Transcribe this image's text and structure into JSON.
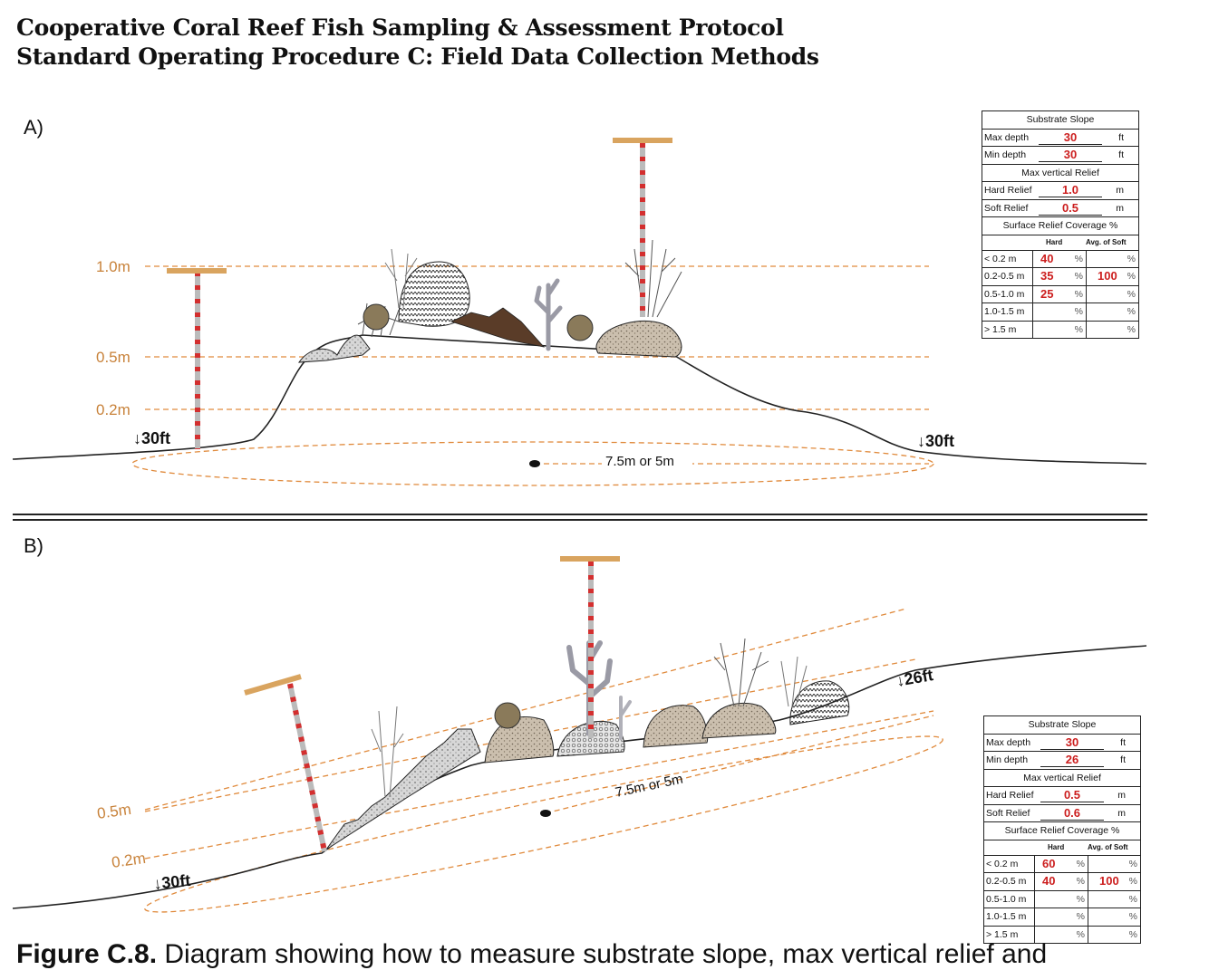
{
  "header": {
    "line1": "Cooperative Coral Reef Fish Sampling & Assessment Protocol",
    "line2": "Standard Operating Procedure C: Field Data Collection Methods"
  },
  "panel_a": {
    "label": "A)",
    "depth_left": "30ft",
    "depth_right": "30ft",
    "levels": [
      "1.0m",
      "0.5m",
      "0.2m"
    ],
    "span_label": "7.5m or 5m",
    "box": {
      "title": "Substrate Slope",
      "max_depth_label": "Max depth",
      "max_depth_value": "30",
      "min_depth_label": "Min depth",
      "min_depth_value": "30",
      "depth_unit": "ft",
      "relief_title": "Max vertical Relief",
      "hard_relief_label": "Hard Relief",
      "hard_relief_value": "1.0",
      "soft_relief_label": "Soft Relief",
      "soft_relief_value": "0.5",
      "relief_unit": "m",
      "coverage_title": "Surface Relief Coverage %",
      "hard_header": "Hard",
      "soft_header": "Avg. of Soft",
      "pct": "%",
      "rows": [
        {
          "cat": "< 0.2 m",
          "hard": "40",
          "soft": ""
        },
        {
          "cat": "0.2-0.5 m",
          "hard": "35",
          "soft": "100"
        },
        {
          "cat": "0.5-1.0 m",
          "hard": "25",
          "soft": ""
        },
        {
          "cat": "1.0-1.5 m",
          "hard": "",
          "soft": ""
        },
        {
          "cat": "> 1.5 m",
          "hard": "",
          "soft": ""
        }
      ]
    }
  },
  "panel_b": {
    "label": "B)",
    "depth_left": "30ft",
    "depth_right": "26ft",
    "levels": [
      "0.5m",
      "0.2m"
    ],
    "span_label": "7.5m or 5m",
    "box": {
      "title": "Substrate Slope",
      "max_depth_label": "Max depth",
      "max_depth_value": "30",
      "min_depth_label": "Min depth",
      "min_depth_value": "26",
      "depth_unit": "ft",
      "relief_title": "Max vertical Relief",
      "hard_relief_label": "Hard Relief",
      "hard_relief_value": "0.5",
      "soft_relief_label": "Soft Relief",
      "soft_relief_value": "0.6",
      "relief_unit": "m",
      "coverage_title": "Surface Relief Coverage %",
      "hard_header": "Hard",
      "soft_header": "Avg. of Soft",
      "pct": "%",
      "rows": [
        {
          "cat": "< 0.2 m",
          "hard": "60",
          "soft": ""
        },
        {
          "cat": "0.2-0.5 m",
          "hard": "40",
          "soft": "100"
        },
        {
          "cat": "0.5-1.0 m",
          "hard": "",
          "soft": ""
        },
        {
          "cat": "1.0-1.5 m",
          "hard": "",
          "soft": ""
        },
        {
          "cat": "> 1.5 m",
          "hard": "",
          "soft": ""
        }
      ]
    }
  },
  "caption": {
    "figure_label": "Figure C.8.",
    "text": "Diagram showing how to measure substrate slope, max vertical relief and"
  },
  "colors": {
    "orange_line": "#e08a3c",
    "pole_red": "#d32f2f",
    "pole_tbar": "#d9a45f",
    "value_red": "#cc1e1e"
  }
}
